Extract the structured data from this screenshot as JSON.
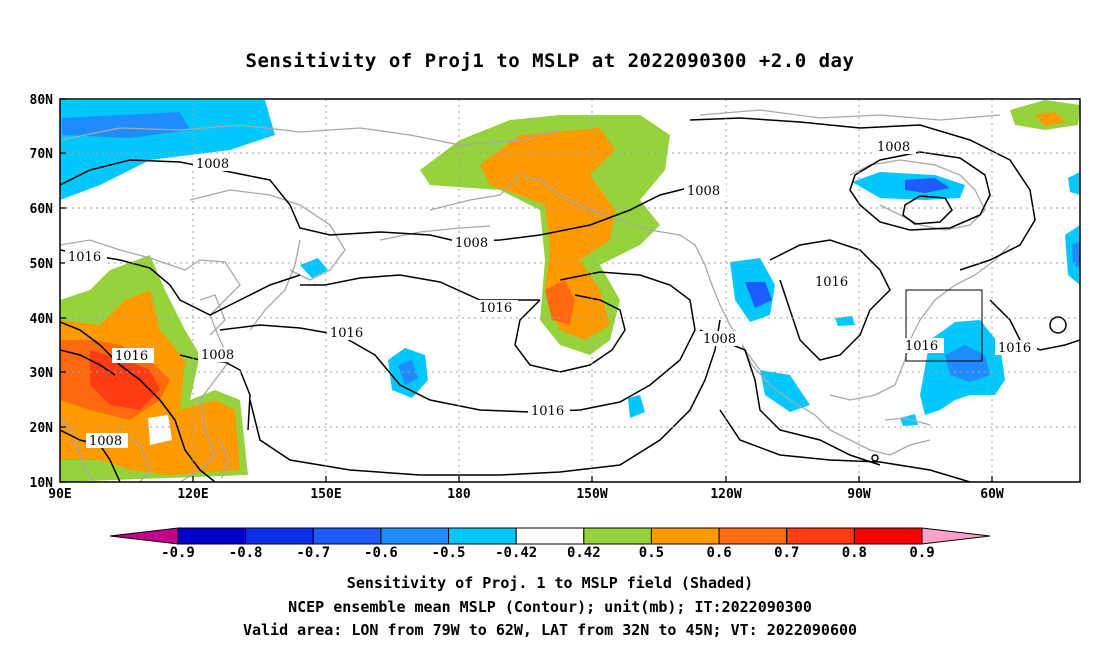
{
  "title": "Sensitivity of Proj1 to MSLP at 2022090300 +2.0 day",
  "lat_labels": [
    "80N",
    "70N",
    "60N",
    "50N",
    "40N",
    "30N",
    "20N",
    "10N"
  ],
  "lon_labels": [
    "90E",
    "120E",
    "150E",
    "180",
    "150W",
    "120W",
    "90W",
    "60W"
  ],
  "contour_labels": [
    "1008",
    "1016",
    "1016",
    "1008",
    "1008",
    "1016",
    "1016",
    "1008",
    "1016",
    "1008",
    "1008",
    "1016",
    "1016",
    "1016"
  ],
  "colorbar": {
    "labels": [
      "-0.9",
      "-0.8",
      "-0.7",
      "-0.6",
      "-0.5",
      "-0.42",
      "0.42",
      "0.5",
      "0.6",
      "0.7",
      "0.8",
      "0.9"
    ],
    "colors": [
      "#c0008a",
      "#0000c8",
      "#0a2fe6",
      "#1e5cff",
      "#1e8cff",
      "#00c8ff",
      "#ffffff",
      "#96d23c",
      "#ff9a00",
      "#ff6a10",
      "#ff3c14",
      "#ff0000",
      "#ffa0c8"
    ]
  },
  "shading_colors": {
    "deep_blue": "#0a3ce0",
    "blue": "#1e8cff",
    "cyan": "#00c8ff",
    "green": "#96d23c",
    "orange": "#ff9a00",
    "dark_orange": "#ff6a10",
    "red": "#ff3c14"
  },
  "captions": {
    "line1": "Sensitivity of Proj. 1 to MSLP field (Shaded)",
    "line2": "NCEP ensemble mean MSLP (Contour); unit(mb); IT:2022090300",
    "line3": "Valid area: LON from 79W to 62W, LAT from 32N to 45N; VT: 2022090600"
  }
}
